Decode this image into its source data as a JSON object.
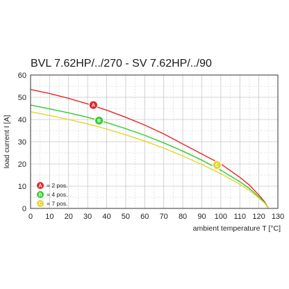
{
  "chart_data": {
    "type": "line",
    "title": "BVL 7.62HP/../270 - SV 7.62HP/../90",
    "xlabel": "ambient temperature T [°C]",
    "ylabel": "load current I [A]",
    "xlim": [
      0,
      130
    ],
    "ylim": [
      0,
      60
    ],
    "xticks": [
      0,
      10,
      20,
      30,
      40,
      50,
      60,
      70,
      80,
      90,
      100,
      110,
      120,
      130
    ],
    "yticks": [
      0,
      10,
      20,
      30,
      40,
      50,
      60
    ],
    "grid": true,
    "legend_position": "bottom-left",
    "series": [
      {
        "marker": "A",
        "label": "= 2 pos.",
        "color": "#e8262a",
        "x": [
          0,
          10,
          20,
          30,
          40,
          50,
          60,
          70,
          80,
          90,
          100,
          110,
          115,
          120,
          123,
          125
        ],
        "y": [
          53.5,
          51.7,
          49.5,
          47.0,
          44.2,
          41.0,
          37.5,
          33.5,
          29.0,
          24.5,
          20.0,
          14.0,
          10.5,
          6.0,
          3.0,
          0
        ],
        "marker_point": [
          33,
          46.5
        ]
      },
      {
        "marker": "B",
        "label": "= 4 pos.",
        "color": "#2ecc2e",
        "x": [
          0,
          10,
          20,
          30,
          40,
          50,
          60,
          70,
          80,
          90,
          100,
          110,
          115,
          120,
          123,
          125
        ],
        "y": [
          46.5,
          44.8,
          43.0,
          41.0,
          38.6,
          35.9,
          32.9,
          29.5,
          25.8,
          21.7,
          17.2,
          12.0,
          9.0,
          5.2,
          2.6,
          0
        ],
        "marker_point": [
          36,
          39.5
        ]
      },
      {
        "marker": "C",
        "label": "= 7 pos.",
        "color": "#e4d42a",
        "x": [
          0,
          10,
          20,
          30,
          40,
          50,
          60,
          70,
          80,
          90,
          100,
          110,
          115,
          120,
          123,
          125
        ],
        "y": [
          43.5,
          41.8,
          40.0,
          38.0,
          35.7,
          33.1,
          30.3,
          27.1,
          23.6,
          19.8,
          15.6,
          10.8,
          8.1,
          4.7,
          2.4,
          0
        ],
        "marker_point": [
          98,
          19.5
        ]
      }
    ]
  }
}
